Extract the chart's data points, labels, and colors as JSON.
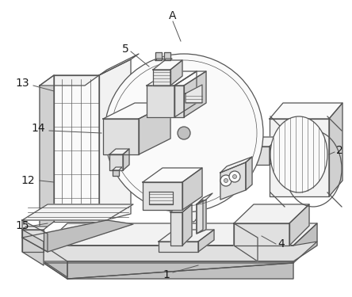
{
  "bg_color": "#ffffff",
  "lc": "#555555",
  "lw": 0.9,
  "figsize": [
    4.44,
    3.75
  ],
  "dpi": 100,
  "fills": {
    "top": "#f2f2f2",
    "front": "#e0e0e0",
    "side": "#d0d0d0",
    "dark": "#c0c0c0",
    "white": "#fafafa",
    "hatch_bg": "#e8e8e8"
  }
}
